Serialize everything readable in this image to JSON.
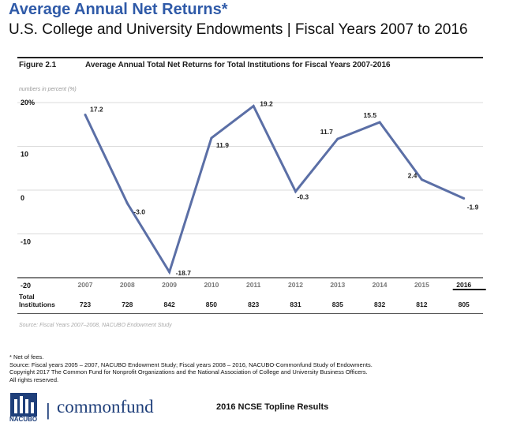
{
  "header": {
    "title": "Average Annual Net Returns*",
    "subtitle": "U.S. College and University Endowments | Fiscal Years 2007 to 2016"
  },
  "figure": {
    "number": "Figure 2.1",
    "title": "Average Annual Total Net Returns for Total Institutions for Fiscal Years 2007-2016",
    "units_note": "numbers in percent (%)",
    "source": "Source: Fiscal Years 2007–2008, NACUBO Endowment Study",
    "total_label_line1": "Total",
    "total_label_line2": "Institutions"
  },
  "chart_data": {
    "type": "line",
    "title": "Average Annual Total Net Returns for Total Institutions for Fiscal Years 2007-2016",
    "xlabel": "",
    "ylabel": "",
    "x": [
      "2007",
      "2008",
      "2009",
      "2010",
      "2011",
      "2012",
      "2013",
      "2014",
      "2015",
      "2016"
    ],
    "series": [
      {
        "values": [
          17.2,
          -3.0,
          -18.7,
          11.9,
          19.2,
          -0.3,
          11.7,
          15.5,
          2.4,
          -1.9
        ]
      }
    ],
    "data_labels": [
      "17.2",
      "-3.0",
      "-18.7",
      "11.9",
      "19.2",
      "-0.3",
      "11.7",
      "15.5",
      "2.4",
      "-1.9"
    ],
    "y_ticks": [
      "20%",
      "10",
      "0",
      "-10",
      "-20"
    ],
    "y_tick_values": [
      20,
      10,
      0,
      -10,
      -20
    ],
    "ylim": [
      -20,
      20
    ],
    "grid": true,
    "line_color": "#5b6fa6",
    "highlight_category": "2016",
    "total_institutions": [
      "723",
      "728",
      "842",
      "850",
      "823",
      "831",
      "835",
      "832",
      "812",
      "805"
    ]
  },
  "footer": {
    "note1": "* Net of fees.",
    "note2": "Source: Fiscal years 2005 – 2007, NACUBO Endowment Study; Fiscal years 2008 – 2016, NACUBO-Commonfund Study of Endowments.",
    "note3": "Copyright 2017 The Common Fund for Nonprofit Organizations and the National Association of College and University Business Officers.",
    "note4": "All rights reserved.",
    "logo_text": "NACUBO",
    "separator": "|",
    "brand": "commonfund",
    "report": "2016 NCSE Topline Results"
  }
}
